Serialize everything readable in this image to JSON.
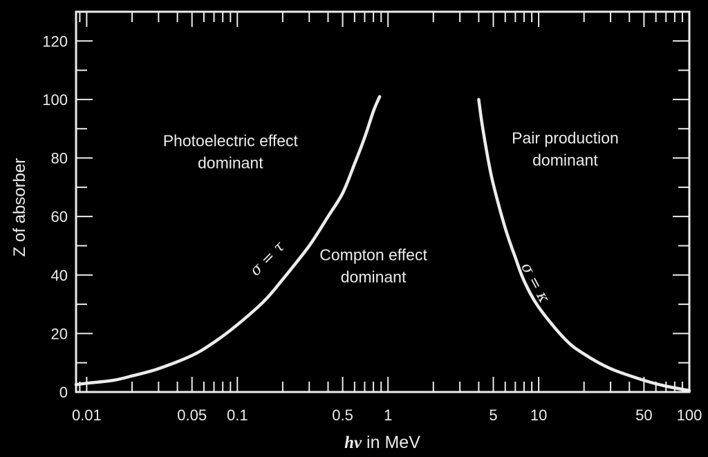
{
  "colors": {
    "background": "#000000",
    "foreground": "#ececec"
  },
  "chart_data": {
    "type": "line",
    "x_scale": "log",
    "xlim": [
      0.0085,
      100
    ],
    "ylim": [
      0,
      130
    ],
    "grid": false,
    "title": "",
    "xlabel": {
      "symbol": "hν",
      "text": " in MeV"
    },
    "ylabel": "Z of absorber",
    "x_tick_labels": [
      {
        "value": 0.01,
        "label": "0.01"
      },
      {
        "value": 0.05,
        "label": "0.05"
      },
      {
        "value": 0.1,
        "label": "0.1"
      },
      {
        "value": 0.5,
        "label": "0.5"
      },
      {
        "value": 1,
        "label": "1"
      },
      {
        "value": 5,
        "label": "5"
      },
      {
        "value": 10,
        "label": "10"
      },
      {
        "value": 50,
        "label": "50"
      },
      {
        "value": 100,
        "label": "100"
      }
    ],
    "y_tick_labels": [
      {
        "value": 0,
        "label": "0"
      },
      {
        "value": 20,
        "label": "20"
      },
      {
        "value": 40,
        "label": "40"
      },
      {
        "value": 60,
        "label": "60"
      },
      {
        "value": 80,
        "label": "80"
      },
      {
        "value": 100,
        "label": "100"
      },
      {
        "value": 120,
        "label": "120"
      }
    ],
    "series": [
      {
        "label": "σ = τ",
        "points": [
          {
            "x": 0.0085,
            "y": 2.5
          },
          {
            "x": 0.01,
            "y": 3
          },
          {
            "x": 0.015,
            "y": 4
          },
          {
            "x": 0.02,
            "y": 5.5
          },
          {
            "x": 0.03,
            "y": 8
          },
          {
            "x": 0.05,
            "y": 12.5
          },
          {
            "x": 0.07,
            "y": 17
          },
          {
            "x": 0.1,
            "y": 23
          },
          {
            "x": 0.15,
            "y": 31
          },
          {
            "x": 0.2,
            "y": 38.5
          },
          {
            "x": 0.3,
            "y": 50
          },
          {
            "x": 0.4,
            "y": 60
          },
          {
            "x": 0.5,
            "y": 68
          },
          {
            "x": 0.6,
            "y": 78
          },
          {
            "x": 0.7,
            "y": 87
          },
          {
            "x": 0.8,
            "y": 96
          },
          {
            "x": 0.88,
            "y": 101
          }
        ]
      },
      {
        "label": "σ = κ",
        "points": [
          {
            "x": 4.0,
            "y": 100
          },
          {
            "x": 4.2,
            "y": 92
          },
          {
            "x": 4.6,
            "y": 80
          },
          {
            "x": 5,
            "y": 71
          },
          {
            "x": 6,
            "y": 56
          },
          {
            "x": 7,
            "y": 46
          },
          {
            "x": 8,
            "y": 38
          },
          {
            "x": 10,
            "y": 29
          },
          {
            "x": 15,
            "y": 18
          },
          {
            "x": 20,
            "y": 13
          },
          {
            "x": 30,
            "y": 8
          },
          {
            "x": 50,
            "y": 4
          },
          {
            "x": 70,
            "y": 2
          },
          {
            "x": 100,
            "y": 0.5
          }
        ]
      }
    ],
    "annotations": [
      {
        "lines": [
          "Photoelectric effect",
          "dominant"
        ],
        "x": 0.09,
        "y": 84
      },
      {
        "lines": [
          "Compton effect",
          "dominant"
        ],
        "x": 0.8,
        "y": 45
      },
      {
        "lines": [
          "Pair production",
          "dominant"
        ],
        "x": 15,
        "y": 85
      }
    ]
  }
}
